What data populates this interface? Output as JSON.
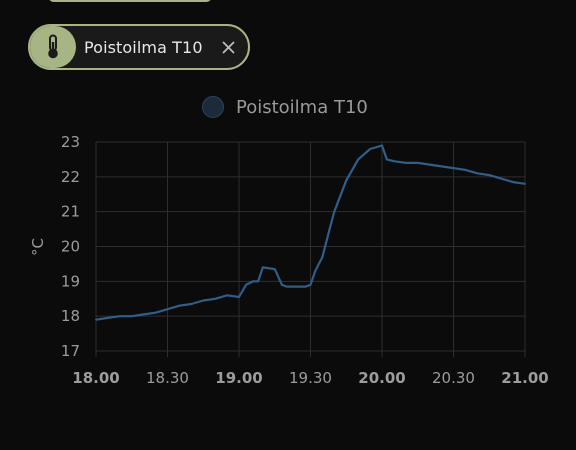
{
  "chip": {
    "label": "Poistoilma T10",
    "icon": "thermometer-icon",
    "close_icon": "close-icon"
  },
  "legend": {
    "label": "Poistoilma T10",
    "color": "#2c4566"
  },
  "colors": {
    "accent": "#a7b585",
    "line": "#2f5e88",
    "grid": "#2e2e2e"
  },
  "chart_data": {
    "type": "line",
    "title": "",
    "ylabel": "°C",
    "xlabel": "",
    "ylim": [
      17,
      23
    ],
    "xlim": [
      "18.00",
      "21.00"
    ],
    "grid": true,
    "y_ticks": [
      "17",
      "18",
      "19",
      "20",
      "21",
      "22",
      "23"
    ],
    "x_ticks": [
      {
        "label": "18.00",
        "bold": true
      },
      {
        "label": "18.30",
        "bold": false
      },
      {
        "label": "19.00",
        "bold": true
      },
      {
        "label": "19.30",
        "bold": false
      },
      {
        "label": "20.00",
        "bold": true
      },
      {
        "label": "20.30",
        "bold": false
      },
      {
        "label": "21.00",
        "bold": true
      }
    ],
    "series": [
      {
        "name": "Poistoilma T10",
        "x": [
          "18.00",
          "18.05",
          "18.10",
          "18.15",
          "18.20",
          "18.25",
          "18.30",
          "18.35",
          "18.40",
          "18.45",
          "18.50",
          "18.55",
          "19.00",
          "19.03",
          "19.06",
          "19.08",
          "19.10",
          "19.15",
          "19.18",
          "19.20",
          "19.25",
          "19.28",
          "19.30",
          "19.32",
          "19.35",
          "19.38",
          "19.40",
          "19.45",
          "19.50",
          "19.55",
          "20.00",
          "20.02",
          "20.05",
          "20.10",
          "20.15",
          "20.20",
          "20.25",
          "20.30",
          "20.35",
          "20.40",
          "20.45",
          "20.50",
          "20.55",
          "21.00"
        ],
        "values": [
          17.9,
          17.95,
          18.0,
          18.0,
          18.05,
          18.1,
          18.2,
          18.3,
          18.35,
          18.45,
          18.5,
          18.6,
          18.55,
          18.9,
          19.0,
          19.0,
          19.4,
          19.35,
          18.9,
          18.85,
          18.85,
          18.85,
          18.9,
          19.3,
          19.7,
          20.5,
          21.0,
          21.9,
          22.5,
          22.8,
          22.9,
          22.5,
          22.45,
          22.4,
          22.4,
          22.35,
          22.3,
          22.25,
          22.2,
          22.1,
          22.05,
          21.95,
          21.85,
          21.8
        ]
      }
    ]
  }
}
